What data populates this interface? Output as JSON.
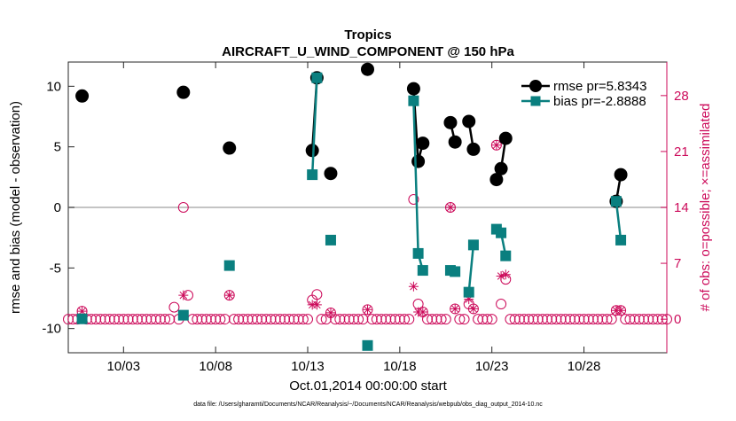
{
  "chart_data": {
    "type": "scatter",
    "title": "Tropics",
    "subtitle": "AIRCRAFT_U_WIND_COMPONENT @ 150 hPa",
    "xlabel": "Oct.01,2014 00:00:00 start",
    "ylabel": "rmse and bias (model - observation)",
    "y2label": "# of obs: o=possible; ×=assimilated",
    "footnote": "data file: /Users/gharamti/Documents/NCAR/Reanalysis/~/Documents/NCAR/Reanalysis/webpub/obs_diag_output_2014-10.nc",
    "xlim": [
      0,
      32.5
    ],
    "ylim": [
      -12,
      12
    ],
    "y2lim": [
      -4.2,
      32.2
    ],
    "x_ticks": [
      {
        "value": 3,
        "label": "10/03"
      },
      {
        "value": 8,
        "label": "10/08"
      },
      {
        "value": 13,
        "label": "10/13"
      },
      {
        "value": 18,
        "label": "10/18"
      },
      {
        "value": 23,
        "label": "10/23"
      },
      {
        "value": 28,
        "label": "10/28"
      }
    ],
    "y_ticks": [
      10,
      5,
      0,
      -5,
      -10
    ],
    "y2_ticks": [
      28,
      21,
      14,
      7,
      0
    ],
    "grid": false,
    "zero_line": true,
    "legend_position": "top-right",
    "colors": {
      "rmse": "#000000",
      "bias": "#0a7f7f",
      "obs": "#cc0a5a",
      "zero": "#b0b0b0",
      "axis": "#262626"
    },
    "series": [
      {
        "name": "rmse pr=5.8343",
        "marker": "circle",
        "segments": [
          [
            [
              0.75,
              9.2
            ]
          ],
          [
            [
              6.25,
              9.5
            ]
          ],
          [
            [
              8.75,
              4.9
            ]
          ],
          [
            [
              13.25,
              4.7
            ],
            [
              13.5,
              10.7
            ]
          ],
          [
            [
              14.25,
              2.8
            ]
          ],
          [
            [
              16.25,
              11.4
            ]
          ],
          [
            [
              18.75,
              9.8
            ],
            [
              19.0,
              3.8
            ],
            [
              19.25,
              5.3
            ]
          ],
          [
            [
              20.75,
              7.0
            ],
            [
              21.0,
              5.4
            ]
          ],
          [
            [
              21.75,
              7.1
            ],
            [
              22.0,
              4.8
            ]
          ],
          [
            [
              23.25,
              2.3
            ],
            [
              23.5,
              3.2
            ],
            [
              23.75,
              5.7
            ]
          ],
          [
            [
              29.75,
              0.5
            ],
            [
              30.0,
              2.7
            ]
          ]
        ]
      },
      {
        "name": "bias pr=-2.8888",
        "marker": "square",
        "segments": [
          [
            [
              0.75,
              -9.2
            ]
          ],
          [
            [
              6.25,
              -8.9
            ]
          ],
          [
            [
              8.75,
              -4.8
            ]
          ],
          [
            [
              13.25,
              2.7
            ],
            [
              13.5,
              10.7
            ]
          ],
          [
            [
              14.25,
              -2.7
            ]
          ],
          [
            [
              16.25,
              -11.4
            ]
          ],
          [
            [
              18.75,
              8.8
            ],
            [
              19.0,
              -3.8
            ],
            [
              19.25,
              -5.2
            ]
          ],
          [
            [
              20.75,
              -5.2
            ],
            [
              21.0,
              -5.3
            ]
          ],
          [
            [
              21.75,
              -7.0
            ],
            [
              22.0,
              -3.1
            ]
          ],
          [
            [
              23.25,
              -1.8
            ],
            [
              23.5,
              -2.1
            ],
            [
              23.75,
              -4.0
            ]
          ],
          [
            [
              29.75,
              0.5
            ],
            [
              30.0,
              -2.7
            ]
          ]
        ]
      }
    ],
    "obs_possible": {
      "x_start": 0.0,
      "x_step": 0.25,
      "x_count": 131,
      "baseline": 0,
      "nonzero": [
        [
          0.75,
          1
        ],
        [
          5.75,
          1.5
        ],
        [
          6.25,
          14
        ],
        [
          6.5,
          3
        ],
        [
          8.75,
          3
        ],
        [
          13.25,
          2.4
        ],
        [
          13.5,
          3.1
        ],
        [
          14.25,
          0.8
        ],
        [
          16.25,
          1.2
        ],
        [
          18.75,
          15
        ],
        [
          19.0,
          1.9
        ],
        [
          19.25,
          0.9
        ],
        [
          20.75,
          14
        ],
        [
          21.0,
          1.3
        ],
        [
          21.75,
          1.9
        ],
        [
          22.0,
          1.3
        ],
        [
          23.25,
          21.8
        ],
        [
          23.5,
          1.9
        ],
        [
          23.75,
          5
        ],
        [
          29.75,
          1.1
        ],
        [
          30.0,
          1.1
        ]
      ]
    },
    "obs_assimilated": [
      [
        0.75,
        1
      ],
      [
        6.25,
        3
      ],
      [
        8.75,
        3
      ],
      [
        13.25,
        1.8
      ],
      [
        13.5,
        1.8
      ],
      [
        14.25,
        0.8
      ],
      [
        16.25,
        1.2
      ],
      [
        18.75,
        4.1
      ],
      [
        19.0,
        0.9
      ],
      [
        19.25,
        0.9
      ],
      [
        20.75,
        14
      ],
      [
        21.0,
        1.3
      ],
      [
        21.75,
        2.5
      ],
      [
        22.0,
        1.3
      ],
      [
        23.25,
        21.8
      ],
      [
        23.5,
        5.4
      ],
      [
        23.75,
        5.6
      ],
      [
        29.75,
        1.1
      ],
      [
        30.0,
        1.1
      ]
    ]
  }
}
